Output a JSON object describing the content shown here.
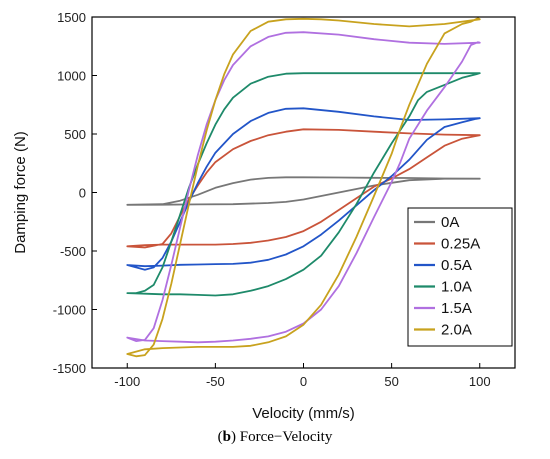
{
  "caption": {
    "prefix": "(",
    "letter": "b",
    "rest": ") Force−Velocity"
  },
  "chart_data": {
    "type": "line",
    "xlabel": "Velocity (mm/s)",
    "ylabel": "Damping force (N)",
    "xlim": [
      -120,
      120
    ],
    "ylim": [
      -1500,
      1500
    ],
    "xticks": [
      -100,
      -50,
      0,
      50,
      100
    ],
    "xtick_labels": [
      "-100",
      "-50",
      "0",
      "50",
      "100"
    ],
    "yticks": [
      -1500,
      -1000,
      -500,
      0,
      500,
      1000,
      1500
    ],
    "ytick_labels": [
      "-1500",
      "-1000",
      "-500",
      "0",
      "500",
      "1000",
      "1500"
    ],
    "grid": false,
    "legend_position": "lower-right",
    "series": [
      {
        "name": "0A",
        "color": "#777777",
        "x": [
          -100,
          -80,
          -70,
          -60,
          -50,
          -40,
          -30,
          -20,
          -10,
          0,
          20,
          40,
          60,
          80,
          100,
          95,
          80,
          60,
          40,
          20,
          0,
          -10,
          -20,
          -40,
          -60,
          -80,
          -100
        ],
        "y": [
          -105,
          -100,
          -70,
          -20,
          40,
          80,
          110,
          125,
          130,
          130,
          128,
          126,
          124,
          120,
          118,
          118,
          118,
          105,
          60,
          0,
          -60,
          -80,
          -90,
          -100,
          -102,
          -104,
          -105
        ]
      },
      {
        "name": "0.25A",
        "color": "#c9543a",
        "x": [
          -100,
          -90,
          -80,
          -75,
          -70,
          -65,
          -60,
          -55,
          -50,
          -40,
          -30,
          -20,
          -10,
          0,
          20,
          40,
          60,
          80,
          100,
          97,
          90,
          80,
          70,
          60,
          50,
          40,
          30,
          20,
          10,
          0,
          -10,
          -20,
          -30,
          -40,
          -50,
          -60,
          -70,
          -80,
          -90,
          -100
        ],
        "y": [
          -460,
          -470,
          -440,
          -350,
          -200,
          -60,
          60,
          170,
          260,
          370,
          440,
          490,
          520,
          540,
          535,
          520,
          505,
          495,
          490,
          480,
          460,
          400,
          300,
          200,
          120,
          50,
          -50,
          -150,
          -250,
          -330,
          -380,
          -410,
          -430,
          -440,
          -445,
          -445,
          -445,
          -445,
          -450,
          -460
        ]
      },
      {
        "name": "0.5A",
        "color": "#2255c8",
        "x": [
          -100,
          -90,
          -85,
          -80,
          -75,
          -70,
          -65,
          -60,
          -55,
          -50,
          -40,
          -30,
          -20,
          -10,
          0,
          20,
          40,
          60,
          80,
          100,
          98,
          90,
          80,
          70,
          60,
          50,
          40,
          30,
          20,
          10,
          0,
          -10,
          -20,
          -30,
          -40,
          -50,
          -60,
          -70,
          -80,
          -90,
          -100
        ],
        "y": [
          -620,
          -660,
          -640,
          -560,
          -420,
          -250,
          -80,
          80,
          220,
          340,
          500,
          610,
          680,
          715,
          720,
          690,
          650,
          620,
          625,
          635,
          630,
          600,
          560,
          450,
          280,
          140,
          20,
          -110,
          -240,
          -360,
          -460,
          -530,
          -575,
          -600,
          -610,
          -612,
          -615,
          -618,
          -625,
          -630,
          -620
        ]
      },
      {
        "name": "1.0A",
        "color": "#1e8a6a",
        "x": [
          -100,
          -95,
          -90,
          -85,
          -80,
          -75,
          -70,
          -65,
          -60,
          -55,
          -50,
          -45,
          -40,
          -30,
          -20,
          -10,
          0,
          20,
          40,
          60,
          80,
          100,
          98,
          90,
          80,
          70,
          65,
          60,
          50,
          40,
          30,
          20,
          10,
          0,
          -10,
          -20,
          -30,
          -40,
          -50,
          -60,
          -70,
          -80,
          -90,
          -100
        ],
        "y": [
          -860,
          -860,
          -840,
          -790,
          -640,
          -420,
          -190,
          40,
          240,
          420,
          580,
          710,
          810,
          930,
          990,
          1015,
          1020,
          1020,
          1020,
          1020,
          1020,
          1020,
          1010,
          980,
          920,
          860,
          790,
          650,
          420,
          170,
          -100,
          -340,
          -540,
          -660,
          -740,
          -800,
          -840,
          -870,
          -880,
          -875,
          -870,
          -870,
          -865,
          -860
        ]
      },
      {
        "name": "1.5A",
        "color": "#b070e0",
        "x": [
          -100,
          -95,
          -90,
          -85,
          -80,
          -75,
          -70,
          -65,
          -60,
          -55,
          -50,
          -45,
          -40,
          -30,
          -20,
          -10,
          0,
          20,
          40,
          60,
          80,
          100,
          99,
          95,
          90,
          80,
          70,
          60,
          55,
          50,
          40,
          30,
          20,
          10,
          0,
          -10,
          -20,
          -30,
          -40,
          -50,
          -60,
          -70,
          -80,
          -90,
          -100
        ],
        "y": [
          -1240,
          -1270,
          -1260,
          -1160,
          -920,
          -620,
          -300,
          20,
          320,
          580,
          790,
          960,
          1090,
          1250,
          1330,
          1365,
          1370,
          1350,
          1310,
          1280,
          1270,
          1280,
          1285,
          1260,
          1120,
          900,
          700,
          460,
          260,
          90,
          -210,
          -520,
          -800,
          -1000,
          -1120,
          -1190,
          -1230,
          -1250,
          -1265,
          -1275,
          -1280,
          -1275,
          -1270,
          -1265,
          -1240
        ]
      },
      {
        "name": "2.0A",
        "color": "#c8a21e",
        "x": [
          -100,
          -95,
          -90,
          -85,
          -80,
          -75,
          -70,
          -65,
          -60,
          -55,
          -50,
          -45,
          -40,
          -30,
          -20,
          -10,
          0,
          10,
          20,
          40,
          60,
          80,
          100,
          99,
          95,
          90,
          80,
          70,
          60,
          55,
          50,
          40,
          30,
          20,
          10,
          0,
          -10,
          -20,
          -30,
          -40,
          -50,
          -60,
          -70,
          -80,
          -90,
          -100
        ],
        "y": [
          -1380,
          -1400,
          -1390,
          -1300,
          -1080,
          -780,
          -440,
          -100,
          230,
          530,
          790,
          1010,
          1180,
          1380,
          1460,
          1480,
          1485,
          1480,
          1470,
          1440,
          1420,
          1440,
          1480,
          1490,
          1460,
          1440,
          1360,
          1100,
          750,
          550,
          330,
          -30,
          -380,
          -700,
          -960,
          -1130,
          -1230,
          -1280,
          -1310,
          -1320,
          -1320,
          -1320,
          -1325,
          -1330,
          -1340,
          -1380
        ]
      }
    ]
  }
}
